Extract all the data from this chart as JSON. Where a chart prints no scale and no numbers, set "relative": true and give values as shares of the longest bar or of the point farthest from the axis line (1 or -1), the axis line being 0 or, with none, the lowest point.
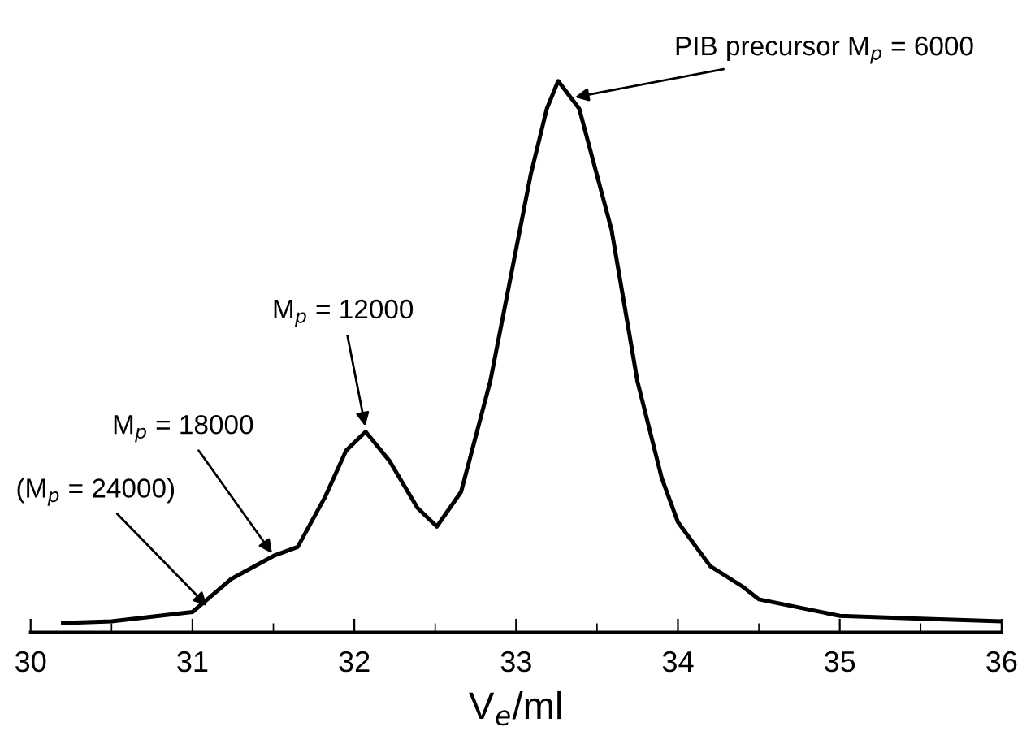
{
  "chart_data": {
    "type": "line",
    "relative": true,
    "xlabel": "V$_{e}$/ml",
    "xlim": [
      30,
      36
    ],
    "xticks": [
      30,
      31,
      32,
      33,
      34,
      35,
      36
    ],
    "color": "#000000",
    "grid": false,
    "legend": false,
    "marker": "none",
    "line_style": "solid",
    "x": [
      30.2,
      30.5,
      31.0,
      31.24,
      31.51,
      31.65,
      31.82,
      31.95,
      32.07,
      32.22,
      32.39,
      32.51,
      32.66,
      32.84,
      33.09,
      33.19,
      33.26,
      33.39,
      33.59,
      33.75,
      33.9,
      34.0,
      34.2,
      34.4,
      34.5,
      35.0,
      35.5,
      36.0
    ],
    "values": [
      0.017,
      0.02,
      0.037,
      0.097,
      0.14,
      0.155,
      0.246,
      0.33,
      0.364,
      0.31,
      0.226,
      0.192,
      0.255,
      0.455,
      0.83,
      0.95,
      1.0,
      0.95,
      0.73,
      0.455,
      0.28,
      0.2,
      0.12,
      0.083,
      0.06,
      0.03,
      0.025,
      0.02
    ],
    "annotations": [
      {
        "text": "PIB precursor M$_{p}$ = 6000",
        "x": 33.35,
        "y": 0.97
      },
      {
        "text": "M$_{p}$ = 12000",
        "x": 32.07,
        "y": 0.37
      },
      {
        "text": "M$_{p}$ = 18000",
        "x": 31.5,
        "y": 0.14
      },
      {
        "text": "(M$_{p}$ = 24000)",
        "x": 31.1,
        "y": 0.045
      }
    ]
  }
}
